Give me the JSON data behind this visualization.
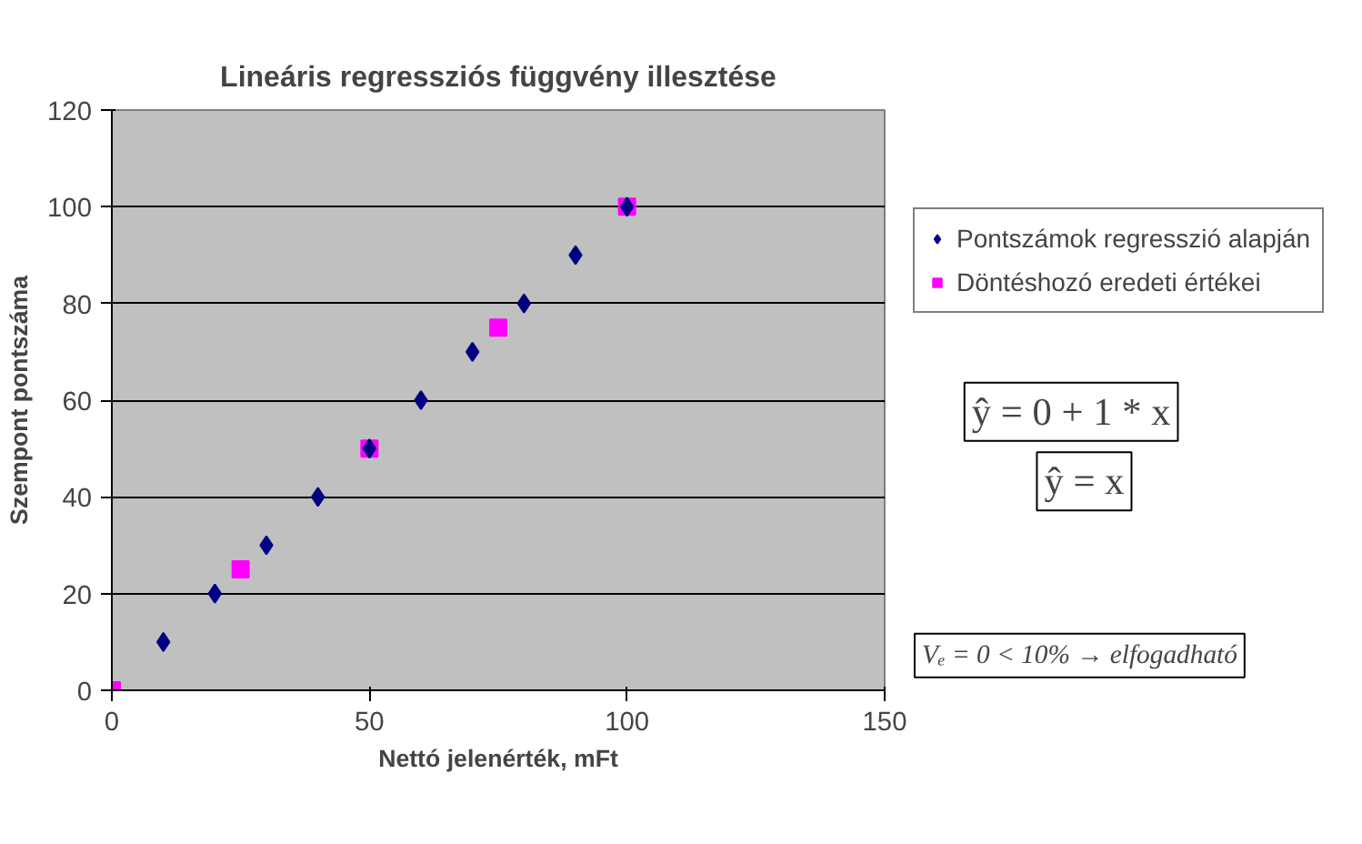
{
  "chart_data": {
    "type": "scatter",
    "title": "Lineáris regressziós függvény illesztése",
    "xlabel": "Nettó jelenérték, mFt",
    "ylabel": "Szempont pontszáma",
    "series": [
      {
        "name": "Pontszámok regresszió alapján",
        "color": "#000080",
        "marker": "diamond",
        "x": [
          10,
          20,
          30,
          40,
          50,
          60,
          70,
          80,
          90,
          100
        ],
        "values": [
          10,
          20,
          30,
          40,
          50,
          60,
          70,
          80,
          90,
          100
        ]
      },
      {
        "name": "Döntéshozó eredeti értékei",
        "color": "#ff00ff",
        "marker": "square",
        "x": [
          0,
          25,
          50,
          75,
          100
        ],
        "values": [
          0,
          25,
          50,
          75,
          100
        ]
      }
    ],
    "xlim": [
      0,
      150
    ],
    "xticks": [
      0,
      50,
      100,
      150
    ],
    "ylim": [
      0,
      120
    ],
    "yticks": [
      0,
      20,
      40,
      60,
      80,
      100,
      120
    ],
    "grid": "y",
    "legend": "right",
    "annotations": [
      "ŷ = 0 + 1 * x",
      "ŷ = x",
      "Vₑ = 0 < 10% → elfogadható"
    ]
  }
}
